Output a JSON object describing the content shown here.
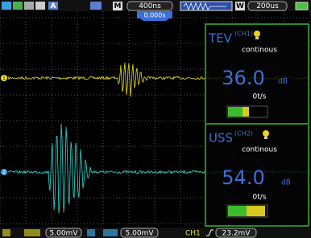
{
  "toolbar": {
    "mode": "A",
    "timebase_label": "M",
    "timebase": "400ns",
    "window_label": "W",
    "window": "200us",
    "trigger_position": "0.000s"
  },
  "channels": [
    {
      "marker": "1",
      "name": "TEV",
      "channel": "(CH1)",
      "mode": "continous",
      "level": "36.0",
      "unit": "dB",
      "rate": "0t/s"
    },
    {
      "marker": "2",
      "name": "USS",
      "channel": "(CH2)",
      "mode": "continous",
      "level": "54.0",
      "unit": "dB",
      "rate": "0t/s"
    }
  ],
  "status": {
    "ch1_scale": "5.00mV",
    "ch2_scale": "5.00mV",
    "trigger_source": "CH1",
    "trigger_level": "23.2mV"
  }
}
